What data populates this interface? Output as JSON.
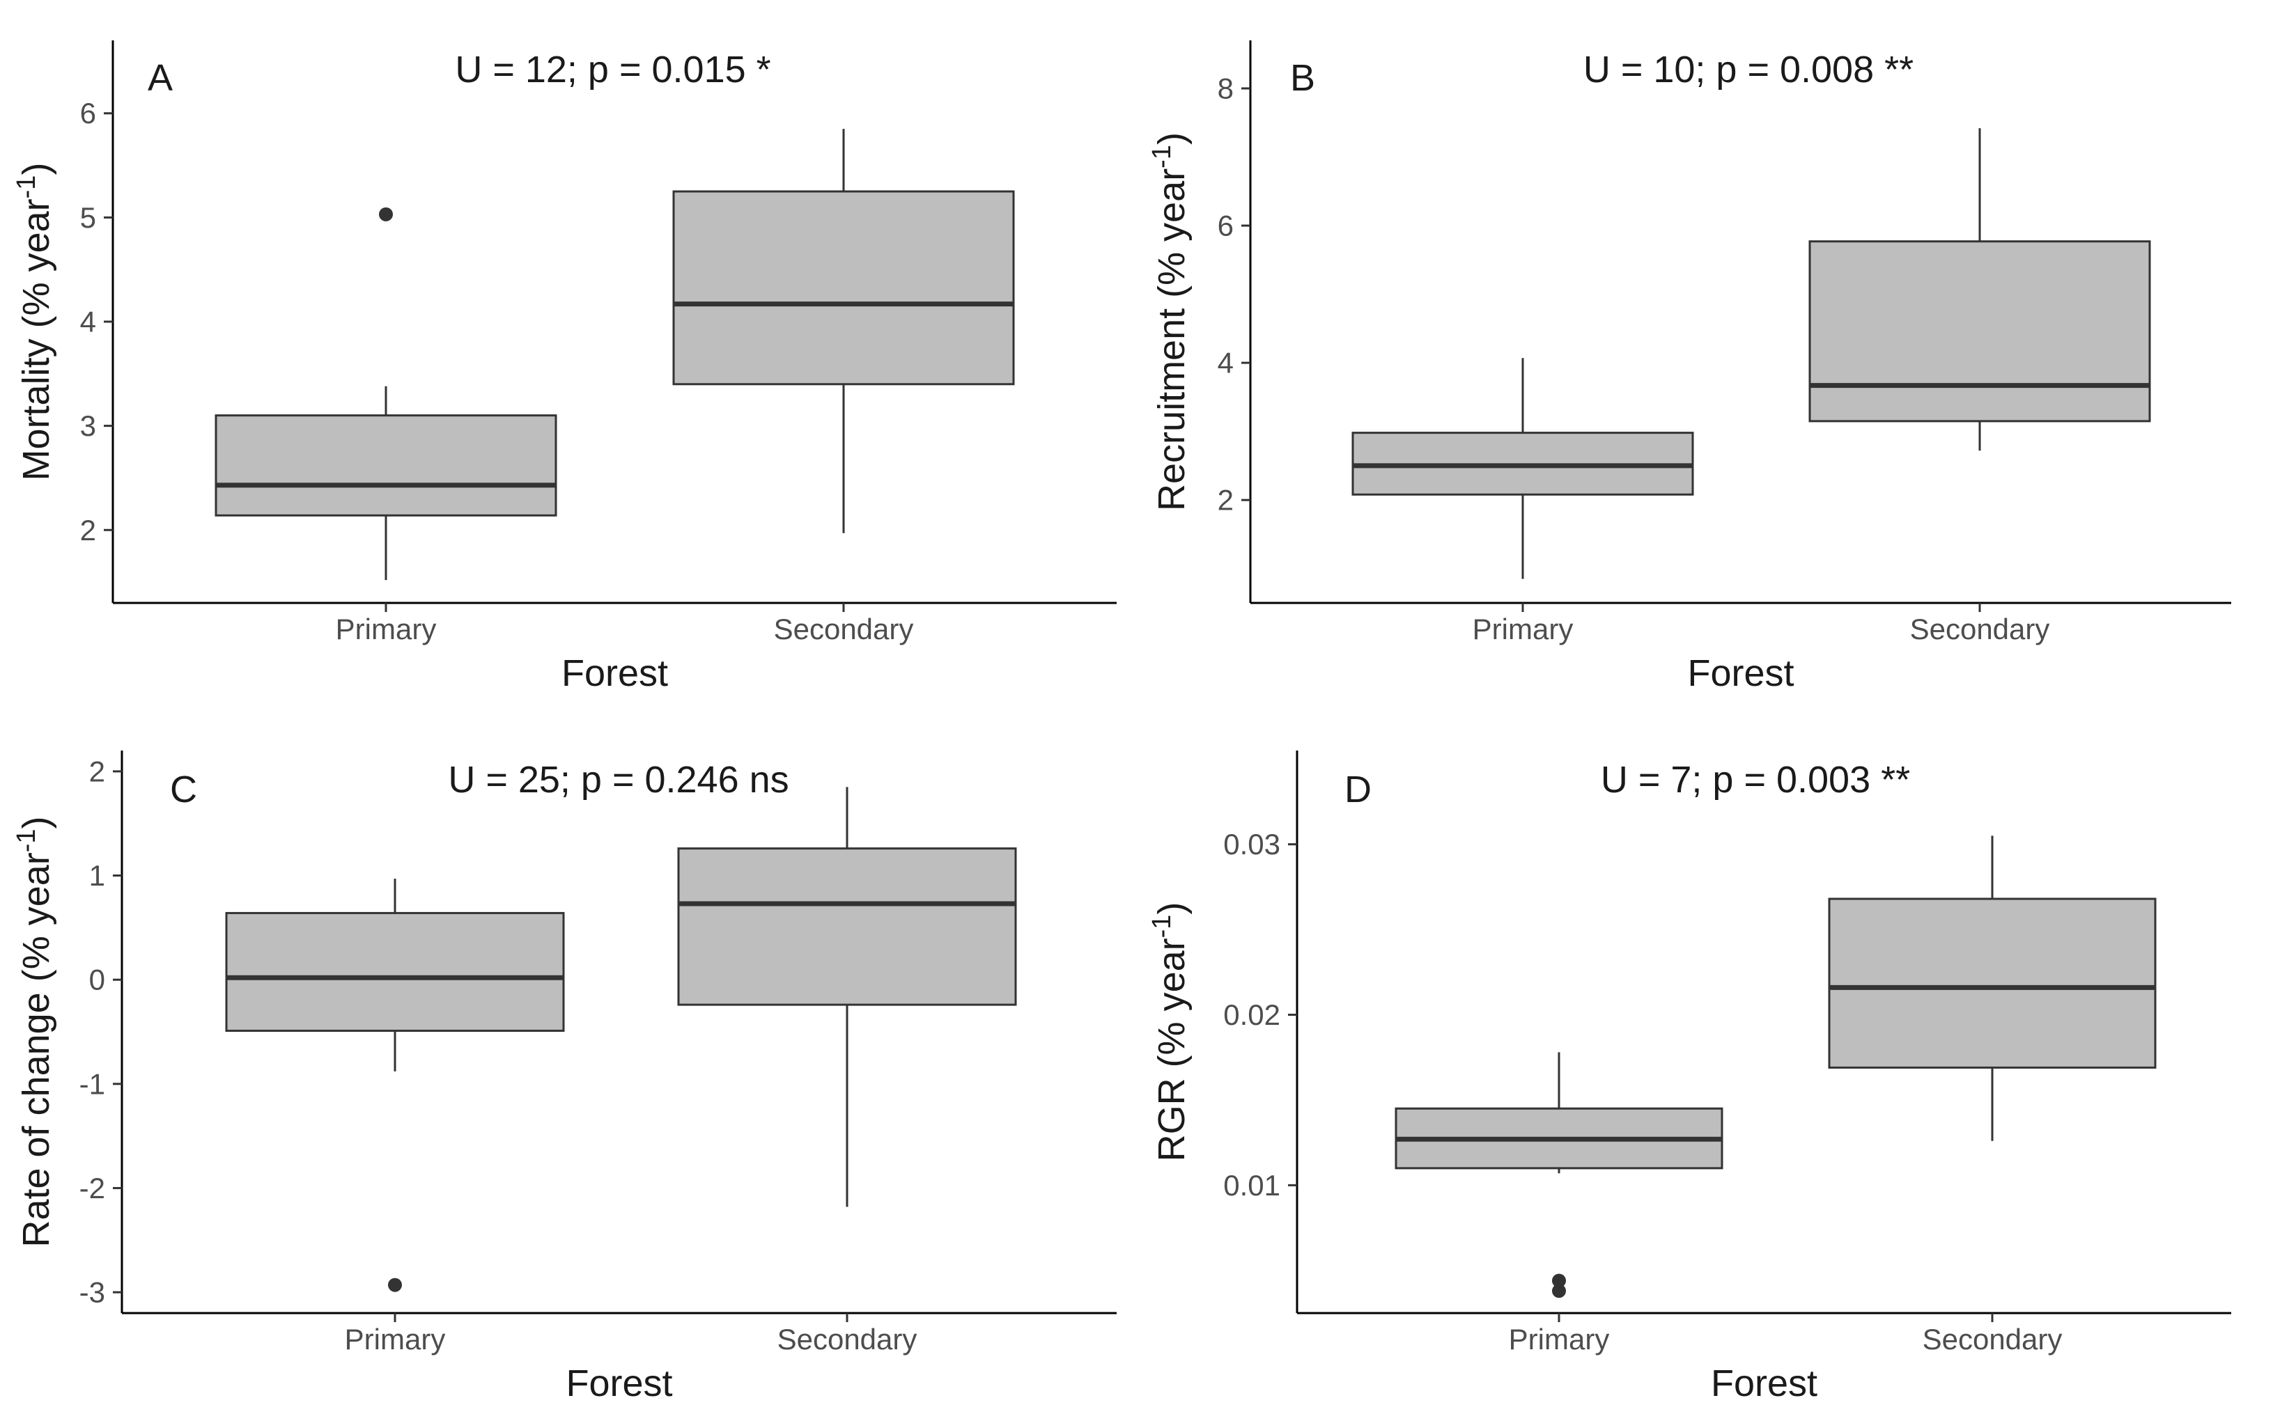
{
  "chart_data": [
    {
      "type": "boxplot",
      "panel": "A",
      "annotation": "U = 12; p = 0.015 *",
      "xlabel": "Forest",
      "ylabel": "Mortality (% year-1)",
      "ylabel_main": "Mortality (% year",
      "ylabel_sup": "-1",
      "ylabel_end": ")",
      "ylim": [
        1.3,
        6.7
      ],
      "yticks": [
        2,
        3,
        4,
        5,
        6
      ],
      "categories": [
        "Primary",
        "Secondary"
      ],
      "boxes": [
        {
          "category": "Primary",
          "whisker_low": 1.52,
          "q1": 2.14,
          "median": 2.43,
          "q3": 3.1,
          "whisker_high": 3.38,
          "outliers": [
            5.03
          ]
        },
        {
          "category": "Secondary",
          "whisker_low": 1.97,
          "q1": 3.4,
          "median": 4.17,
          "q3": 5.25,
          "whisker_high": 5.85,
          "outliers": []
        }
      ]
    },
    {
      "type": "boxplot",
      "panel": "B",
      "annotation": "U = 10; p = 0.008 **",
      "xlabel": "Forest",
      "ylabel": "Recruitment (% year-1)",
      "ylabel_main": "Recruitment (% year",
      "ylabel_sup": "-1",
      "ylabel_end": ")",
      "ylim": [
        0.5,
        8.7
      ],
      "yticks": [
        2,
        4,
        6,
        8
      ],
      "categories": [
        "Primary",
        "Secondary"
      ],
      "boxes": [
        {
          "category": "Primary",
          "whisker_low": 0.85,
          "q1": 2.08,
          "median": 2.5,
          "q3": 2.98,
          "whisker_high": 4.07,
          "outliers": []
        },
        {
          "category": "Secondary",
          "whisker_low": 2.72,
          "q1": 3.15,
          "median": 3.67,
          "q3": 5.77,
          "whisker_high": 7.42,
          "outliers": []
        }
      ]
    },
    {
      "type": "boxplot",
      "panel": "C",
      "annotation": "U = 25; p = 0.246 ns",
      "xlabel": "Forest",
      "ylabel": "Rate of change (% year-1)",
      "ylabel_main": "Rate of change (% year",
      "ylabel_sup": "-1",
      "ylabel_end": ")",
      "ylim": [
        -3.2,
        2.2
      ],
      "yticks": [
        -3,
        -2,
        -1,
        0,
        1,
        2
      ],
      "categories": [
        "Primary",
        "Secondary"
      ],
      "boxes": [
        {
          "category": "Primary",
          "whisker_low": -0.88,
          "q1": -0.49,
          "median": 0.02,
          "q3": 0.64,
          "whisker_high": 0.97,
          "outliers": [
            -2.93
          ]
        },
        {
          "category": "Secondary",
          "whisker_low": -2.18,
          "q1": -0.24,
          "median": 0.73,
          "q3": 1.26,
          "whisker_high": 1.85,
          "outliers": []
        }
      ]
    },
    {
      "type": "boxplot",
      "panel": "D",
      "annotation": "U = 7; p = 0.003 **",
      "xlabel": "Forest",
      "ylabel": "RGR (% year-1)",
      "ylabel_main": "RGR (% year",
      "ylabel_sup": "-1",
      "ylabel_end": ")",
      "ylim": [
        0.0025,
        0.0355
      ],
      "yticks": [
        0.01,
        0.02,
        0.03
      ],
      "yticklabels": [
        "0.01",
        "0.02",
        "0.03"
      ],
      "categories": [
        "Primary",
        "Secondary"
      ],
      "boxes": [
        {
          "category": "Primary",
          "whisker_low": 0.0107,
          "q1": 0.011,
          "median": 0.0127,
          "q3": 0.0145,
          "whisker_high": 0.0178,
          "outliers": [
            0.0038,
            0.0044
          ]
        },
        {
          "category": "Secondary",
          "whisker_low": 0.0126,
          "q1": 0.0169,
          "median": 0.0216,
          "q3": 0.0268,
          "whisker_high": 0.0305,
          "outliers": []
        }
      ]
    }
  ],
  "colors": {
    "box_fill": "#bebebe",
    "box_stroke": "#333333",
    "median": "#333333",
    "axis": "#000000",
    "tick_label": "#4d4d4d",
    "text": "#1a1a1a"
  }
}
